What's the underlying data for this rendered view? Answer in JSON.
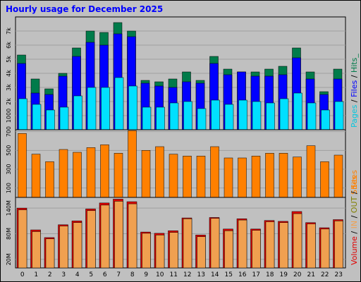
{
  "title": "Hourly usage for December 2025",
  "colors": {
    "hits": "#007b4a",
    "files": "#0000ff",
    "pages": "#00e0ff",
    "sites": "#ff8000",
    "volume": "#e00000",
    "volume_in": "#f0a050",
    "grid": "#a0a0a0",
    "panel": "#c0c0c0"
  },
  "labels": {
    "pages": "Pages",
    "files": "Files",
    "hits": "Hits",
    "sep": " / ",
    "trail": "_",
    "sites": "Sites",
    "volume": "Volume",
    "in": "IN",
    "out": "OUT"
  },
  "chart_data": [
    {
      "type": "bar",
      "name": "hits-files-pages",
      "categories": [
        "0",
        "1",
        "2",
        "3",
        "4",
        "5",
        "6",
        "7",
        "8",
        "9",
        "10",
        "11",
        "12",
        "13",
        "14",
        "15",
        "16",
        "17",
        "18",
        "19",
        "20",
        "21",
        "22",
        "23"
      ],
      "series": [
        {
          "name": "Hits",
          "values": [
            5300,
            3600,
            2900,
            4000,
            5800,
            7000,
            6900,
            7600,
            7000,
            3500,
            3400,
            3600,
            4100,
            3500,
            5200,
            4300,
            4100,
            4100,
            4300,
            4500,
            5800,
            4100,
            2700,
            4300
          ]
        },
        {
          "name": "Files",
          "values": [
            4700,
            2600,
            2500,
            3800,
            5200,
            6200,
            6000,
            6800,
            6600,
            3300,
            3100,
            3000,
            3400,
            3300,
            4700,
            3900,
            4100,
            3800,
            3800,
            3900,
            5100,
            3600,
            2500,
            3600
          ]
        },
        {
          "name": "Pages",
          "values": [
            2200,
            1800,
            1400,
            1600,
            2400,
            3000,
            3000,
            3700,
            3100,
            1600,
            1600,
            1900,
            2000,
            1500,
            2100,
            1800,
            2100,
            2000,
            1900,
            2200,
            2600,
            1900,
            1400,
            2000
          ]
        }
      ],
      "yticks": [
        "1000",
        "2k",
        "3k",
        "4k",
        "5k",
        "6k",
        "7k"
      ],
      "ylim": [
        0,
        8000
      ],
      "grid": true
    },
    {
      "type": "bar",
      "name": "sites",
      "categories": [
        "0",
        "1",
        "2",
        "3",
        "4",
        "5",
        "6",
        "7",
        "8",
        "9",
        "10",
        "11",
        "12",
        "13",
        "14",
        "15",
        "16",
        "17",
        "18",
        "19",
        "20",
        "21",
        "22",
        "23"
      ],
      "series": [
        {
          "name": "Sites",
          "values": [
            680,
            460,
            380,
            510,
            480,
            530,
            560,
            470,
            710,
            500,
            540,
            460,
            440,
            440,
            540,
            420,
            420,
            440,
            470,
            470,
            430,
            550,
            380,
            450
          ]
        }
      ],
      "yticks": [
        "100",
        "300",
        "500",
        "700"
      ],
      "ylim": [
        0,
        720
      ],
      "grid": true
    },
    {
      "type": "bar",
      "name": "volume",
      "categories": [
        "0",
        "1",
        "2",
        "3",
        "4",
        "5",
        "6",
        "7",
        "8",
        "9",
        "10",
        "11",
        "12",
        "13",
        "14",
        "15",
        "16",
        "17",
        "18",
        "19",
        "20",
        "21",
        "22",
        "23"
      ],
      "series": [
        {
          "name": "Volume",
          "values": [
            140,
            89,
            71,
            101,
            110,
            138,
            152,
            161,
            155,
            84,
            81,
            87,
            117,
            77,
            118,
            91,
            115,
            91,
            111,
            109,
            132,
            106,
            94,
            113
          ]
        },
        {
          "name": "IN",
          "values": [
            136,
            85,
            68,
            98,
            106,
            134,
            147,
            156,
            150,
            81,
            77,
            83,
            115,
            73,
            116,
            87,
            112,
            88,
            108,
            106,
            127,
            103,
            91,
            110
          ]
        }
      ],
      "yticks": [
        "20M",
        "80M",
        "140M"
      ],
      "ylim": [
        0,
        165
      ],
      "grid": true
    }
  ]
}
